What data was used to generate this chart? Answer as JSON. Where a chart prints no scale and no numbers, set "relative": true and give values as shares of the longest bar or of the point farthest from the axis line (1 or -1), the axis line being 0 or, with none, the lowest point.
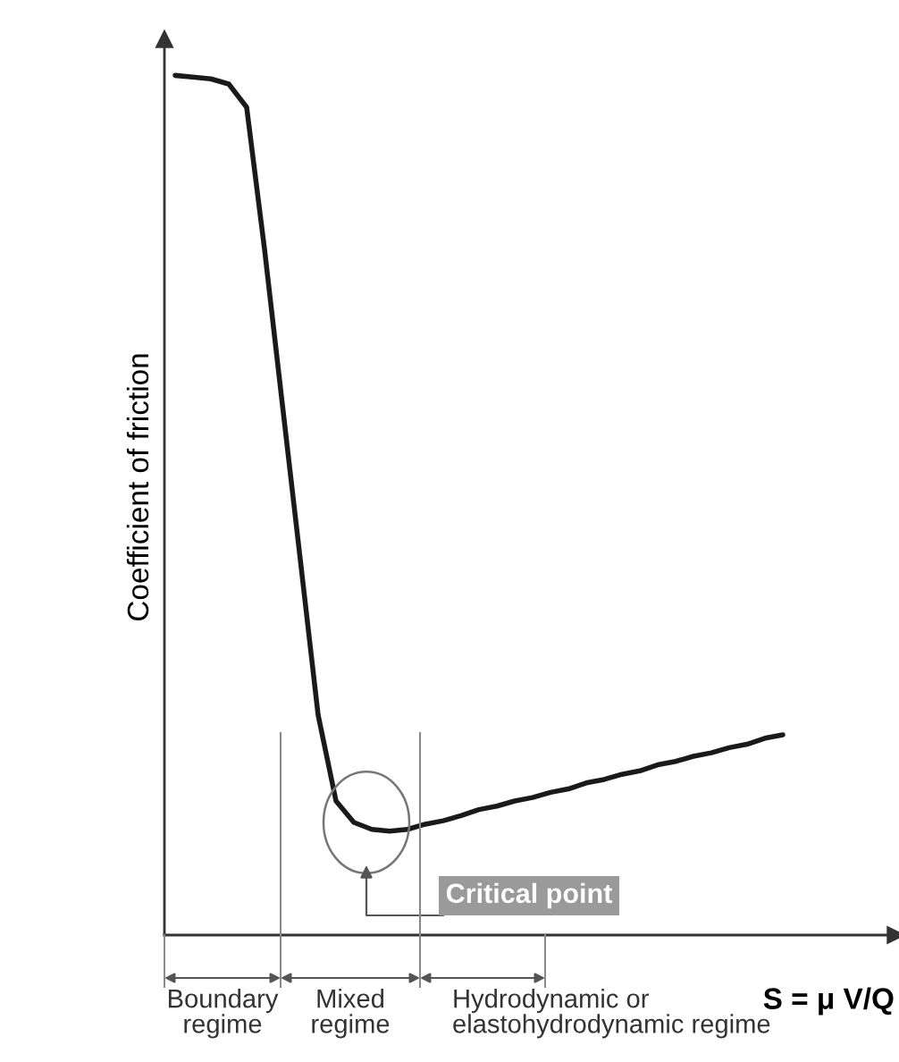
{
  "chart_data": {
    "type": "line",
    "relative": true,
    "ylabel": "Coefficient of friction",
    "xlabel": "S = μ V/Q",
    "categories": [
      null,
      null,
      null,
      null,
      null,
      null,
      null,
      null,
      null,
      null,
      null,
      null,
      null,
      null,
      null,
      null,
      null,
      null,
      null,
      null,
      null,
      null,
      null,
      null,
      null,
      null,
      null,
      null,
      null,
      null,
      null,
      null,
      null,
      null,
      null
    ],
    "series": [
      {
        "color": "#1a1a1a",
        "values": [
          1.0,
          0.998,
          0.996,
          0.99,
          0.963,
          0.798,
          0.617,
          0.437,
          0.256,
          0.156,
          0.131,
          0.123,
          0.121,
          0.123,
          0.129,
          0.133,
          0.139,
          0.146,
          0.15,
          0.156,
          0.16,
          0.166,
          0.17,
          0.177,
          0.181,
          0.187,
          0.191,
          0.198,
          0.202,
          0.208,
          0.212,
          0.218,
          0.222,
          0.229,
          0.233
        ]
      }
    ],
    "annotations": [
      "Critical point",
      "Boundary\nregime",
      "Mixed\nregime",
      "Hydrodynamic or\nelastohydrodynamic regime"
    ],
    "line_style": "solid"
  }
}
